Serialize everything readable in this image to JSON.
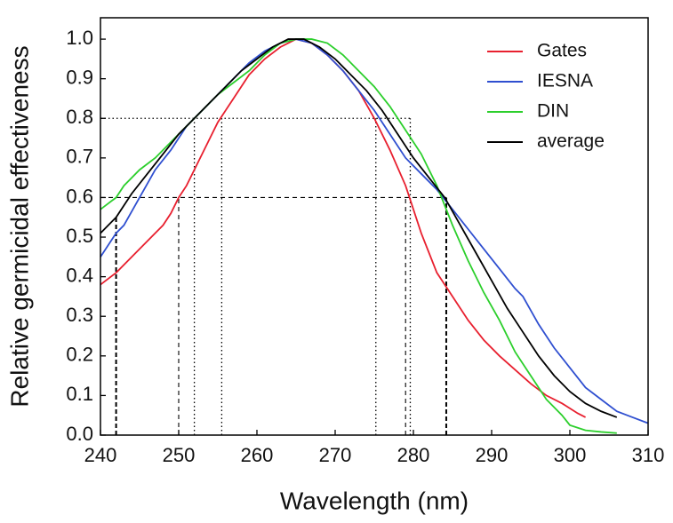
{
  "chart_data": {
    "type": "line",
    "x_label": "Wavelength (nm)",
    "y_label": "Relative germicidal effectiveness",
    "xlim": [
      240,
      310
    ],
    "ylim": [
      0,
      1.054
    ],
    "xticks": [
      240,
      250,
      260,
      270,
      280,
      290,
      300,
      310
    ],
    "yticks": [
      {
        "value": 0,
        "label": "0.0"
      },
      {
        "value": 0.1,
        "label": "0.1"
      },
      {
        "value": 0.2,
        "label": "0.2"
      },
      {
        "value": 0.3,
        "label": "0.3"
      },
      {
        "value": 0.4,
        "label": "0.4"
      },
      {
        "value": 0.5,
        "label": "0.5"
      },
      {
        "value": 0.6,
        "label": "0.6"
      },
      {
        "value": 0.7,
        "label": "0.7"
      },
      {
        "value": 0.8,
        "label": "0.8"
      },
      {
        "value": 0.9,
        "label": "0.9"
      },
      {
        "value": 1,
        "label": "1.0"
      }
    ],
    "legend": "top-right",
    "series": [
      {
        "name": "Gates",
        "color": "#e8202f",
        "x": [
          240,
          242,
          245,
          248,
          249,
          250,
          251,
          253,
          255,
          257,
          259,
          261,
          263,
          265,
          267,
          269,
          271,
          273,
          275,
          277,
          279,
          280,
          281,
          282,
          283,
          284,
          285,
          287,
          289,
          291,
          293,
          295,
          297,
          299,
          301,
          302
        ],
        "values": [
          0.38,
          0.41,
          0.47,
          0.53,
          0.56,
          0.6,
          0.63,
          0.71,
          0.79,
          0.85,
          0.91,
          0.95,
          0.98,
          1.0,
          0.99,
          0.96,
          0.92,
          0.87,
          0.8,
          0.72,
          0.63,
          0.57,
          0.51,
          0.46,
          0.41,
          0.38,
          0.35,
          0.29,
          0.24,
          0.2,
          0.165,
          0.13,
          0.1,
          0.08,
          0.055,
          0.045
        ]
      },
      {
        "name": "IESNA",
        "color": "#2f4fd0",
        "x": [
          240,
          242,
          243,
          245,
          247,
          249,
          251,
          253,
          255,
          257,
          259,
          261,
          263,
          265,
          267,
          269,
          271,
          273,
          275,
          277,
          279,
          281,
          283,
          285,
          287,
          289,
          291,
          293,
          294,
          296,
          298,
          300,
          302,
          304,
          306,
          308,
          310
        ],
        "values": [
          0.45,
          0.51,
          0.53,
          0.6,
          0.67,
          0.72,
          0.78,
          0.82,
          0.86,
          0.9,
          0.94,
          0.97,
          0.99,
          1.0,
          0.99,
          0.96,
          0.92,
          0.87,
          0.82,
          0.76,
          0.7,
          0.66,
          0.62,
          0.57,
          0.52,
          0.47,
          0.42,
          0.37,
          0.35,
          0.28,
          0.22,
          0.17,
          0.12,
          0.09,
          0.06,
          0.045,
          0.03
        ]
      },
      {
        "name": "DIN",
        "color": "#2ccf2c",
        "x": [
          240,
          242,
          243,
          245,
          247,
          249,
          251,
          253,
          255,
          257,
          259,
          261,
          263,
          265,
          267,
          269,
          271,
          273,
          275,
          277,
          279,
          281,
          283,
          284,
          285,
          287,
          289,
          291,
          293,
          295,
          297,
          299,
          300,
          302,
          304,
          306
        ],
        "values": [
          0.57,
          0.6,
          0.63,
          0.67,
          0.7,
          0.74,
          0.78,
          0.82,
          0.86,
          0.89,
          0.92,
          0.96,
          0.99,
          1.0,
          1.0,
          0.99,
          0.96,
          0.92,
          0.88,
          0.83,
          0.77,
          0.71,
          0.63,
          0.58,
          0.53,
          0.44,
          0.36,
          0.29,
          0.21,
          0.15,
          0.09,
          0.05,
          0.025,
          0.012,
          0.008,
          0.005
        ]
      },
      {
        "name": "average",
        "color": "#000000",
        "x": [
          240,
          242,
          244,
          246,
          248,
          250,
          252,
          254,
          256,
          258,
          260,
          262,
          264,
          266,
          268,
          270,
          272,
          274,
          276,
          278,
          280,
          282,
          284,
          286,
          288,
          290,
          292,
          294,
          296,
          298,
          300,
          302,
          304,
          306
        ],
        "values": [
          0.51,
          0.55,
          0.61,
          0.66,
          0.71,
          0.76,
          0.8,
          0.84,
          0.88,
          0.92,
          0.95,
          0.98,
          1.0,
          1.0,
          0.98,
          0.95,
          0.91,
          0.87,
          0.82,
          0.76,
          0.7,
          0.65,
          0.6,
          0.53,
          0.46,
          0.39,
          0.32,
          0.26,
          0.2,
          0.15,
          0.11,
          0.08,
          0.06,
          0.045
        ]
      }
    ],
    "reference_lines": [
      {
        "x": [
          240,
          279.6
        ],
        "y": [
          0.8,
          0.8
        ],
        "style": "dotted"
      },
      {
        "x": [
          240,
          284.2
        ],
        "y": [
          0.6,
          0.6
        ],
        "style": "dashed"
      },
      {
        "x": [
          242,
          242
        ],
        "y": [
          0,
          0.55
        ],
        "style": "bold-dashed"
      },
      {
        "x": [
          250,
          250
        ],
        "y": [
          0,
          0.6
        ],
        "style": "dashed"
      },
      {
        "x": [
          252,
          252
        ],
        "y": [
          0,
          0.8
        ],
        "style": "dotted"
      },
      {
        "x": [
          255.5,
          255.5
        ],
        "y": [
          0,
          0.8
        ],
        "style": "dotted"
      },
      {
        "x": [
          275.2,
          275.2
        ],
        "y": [
          0,
          0.8
        ],
        "style": "dotted"
      },
      {
        "x": [
          279,
          279
        ],
        "y": [
          0,
          0.6
        ],
        "style": "dashed"
      },
      {
        "x": [
          279.6,
          279.6
        ],
        "y": [
          0,
          0.8
        ],
        "style": "dotted"
      },
      {
        "x": [
          284.2,
          284.2
        ],
        "y": [
          0,
          0.6
        ],
        "style": "bold-dashed"
      }
    ]
  }
}
